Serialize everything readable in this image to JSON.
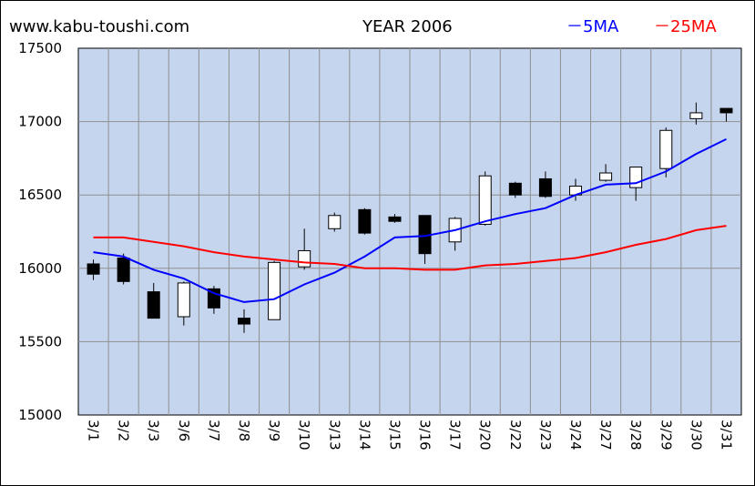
{
  "header": {
    "site": "www.kabu-toushi.com",
    "title": "YEAR 2006",
    "legend_5ma": "－5MA",
    "legend_25ma": "－25MA"
  },
  "colors": {
    "plot_bg": "#c6d5ee",
    "grid": "#8f8f8f",
    "ma5": "#0000ff",
    "ma25": "#ff0000",
    "bull": "#ffffff",
    "bear": "#000000"
  },
  "chart_data": {
    "type": "candlestick",
    "title": "YEAR 2006",
    "ylim": [
      15000,
      17500
    ],
    "yticks": [
      15000,
      15500,
      16000,
      16500,
      17000,
      17500
    ],
    "grid": true,
    "legend_placement": "top-right",
    "categories": [
      "3/1",
      "3/2",
      "3/3",
      "3/6",
      "3/7",
      "3/8",
      "3/9",
      "3/10",
      "3/13",
      "3/14",
      "3/15",
      "3/16",
      "3/17",
      "3/20",
      "3/22",
      "3/23",
      "3/24",
      "3/27",
      "3/28",
      "3/29",
      "3/30",
      "3/31"
    ],
    "candles": [
      {
        "open": 16030,
        "high": 16060,
        "low": 15920,
        "close": 15960
      },
      {
        "open": 16070,
        "high": 16100,
        "low": 15890,
        "close": 15910
      },
      {
        "open": 15840,
        "high": 15900,
        "low": 15660,
        "close": 15660
      },
      {
        "open": 15670,
        "high": 15910,
        "low": 15610,
        "close": 15900
      },
      {
        "open": 15860,
        "high": 15880,
        "low": 15690,
        "close": 15730
      },
      {
        "open": 15660,
        "high": 15720,
        "low": 15560,
        "close": 15620
      },
      {
        "open": 15650,
        "high": 16050,
        "low": 15650,
        "close": 16040
      },
      {
        "open": 16010,
        "high": 16270,
        "low": 15990,
        "close": 16120
      },
      {
        "open": 16270,
        "high": 16380,
        "low": 16250,
        "close": 16360
      },
      {
        "open": 16400,
        "high": 16410,
        "low": 16230,
        "close": 16240
      },
      {
        "open": 16350,
        "high": 16370,
        "low": 16310,
        "close": 16320
      },
      {
        "open": 16360,
        "high": 16360,
        "low": 16030,
        "close": 16100
      },
      {
        "open": 16180,
        "high": 16350,
        "low": 16120,
        "close": 16340
      },
      {
        "open": 16300,
        "high": 16660,
        "low": 16290,
        "close": 16630
      },
      {
        "open": 16580,
        "high": 16590,
        "low": 16480,
        "close": 16500
      },
      {
        "open": 16610,
        "high": 16660,
        "low": 16480,
        "close": 16490
      },
      {
        "open": 16500,
        "high": 16610,
        "low": 16460,
        "close": 16560
      },
      {
        "open": 16600,
        "high": 16710,
        "low": 16590,
        "close": 16650
      },
      {
        "open": 16550,
        "high": 16690,
        "low": 16460,
        "close": 16690
      },
      {
        "open": 16680,
        "high": 16960,
        "low": 16620,
        "close": 16940
      },
      {
        "open": 17020,
        "high": 17130,
        "low": 16980,
        "close": 17060
      },
      {
        "open": 17090,
        "high": 17090,
        "low": 17000,
        "close": 17060
      }
    ],
    "series": [
      {
        "name": "5MA",
        "color": "#0000ff",
        "values": [
          16110,
          16080,
          15990,
          15930,
          15830,
          15770,
          15790,
          15890,
          15970,
          16080,
          16210,
          16220,
          16260,
          16320,
          16370,
          16410,
          16500,
          16570,
          16580,
          16660,
          16780,
          16880
        ]
      },
      {
        "name": "25MA",
        "color": "#ff0000",
        "values": [
          16210,
          16210,
          16180,
          16150,
          16110,
          16080,
          16060,
          16040,
          16030,
          16000,
          16000,
          15990,
          15990,
          16020,
          16030,
          16050,
          16070,
          16110,
          16160,
          16200,
          16260,
          16290
        ]
      }
    ]
  }
}
